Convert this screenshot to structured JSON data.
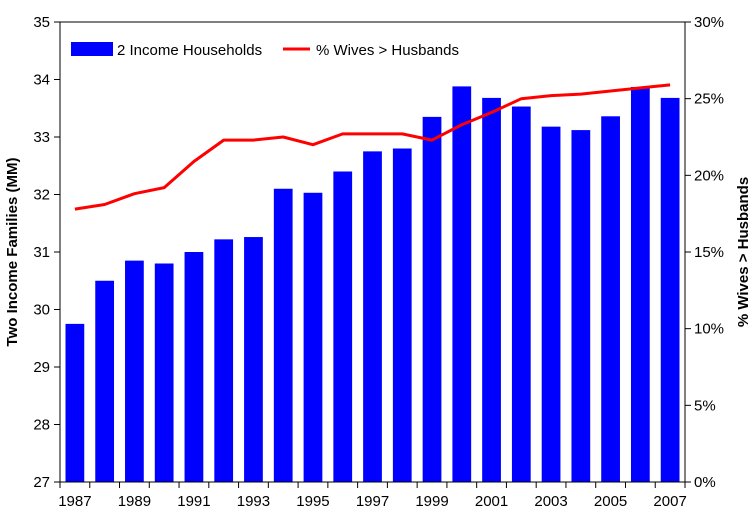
{
  "chart_data": {
    "type": "bar",
    "title": "",
    "ylabel": "Two Income Families (MM)",
    "y2label": "% Wives > Husbands",
    "ylim": [
      27,
      35
    ],
    "y2lim": [
      0,
      30
    ],
    "yticks": [
      "27",
      "28",
      "29",
      "30",
      "31",
      "32",
      "33",
      "34",
      "35"
    ],
    "y2ticks": [
      "0%",
      "5%",
      "10%",
      "15%",
      "20%",
      "25%",
      "30%"
    ],
    "categories": [
      "1987",
      "1988",
      "1989",
      "1990",
      "1991",
      "1992",
      "1993",
      "1994",
      "1995",
      "1996",
      "1997",
      "1998",
      "1999",
      "2000",
      "2001",
      "2002",
      "2003",
      "2004",
      "2005",
      "2006",
      "2007"
    ],
    "xtick_labels": [
      "1987",
      "",
      "1989",
      "",
      "1991",
      "",
      "1993",
      "",
      "1995",
      "",
      "1997",
      "",
      "1999",
      "",
      "2001",
      "",
      "2003",
      "",
      "2005",
      "",
      "2007"
    ],
    "legend_position": "top-left",
    "grid": false,
    "series": [
      {
        "name": "2 Income Households",
        "kind": "bar",
        "axis": "left",
        "color": "#0000ff",
        "values": [
          29.75,
          30.5,
          30.85,
          30.8,
          31.0,
          31.22,
          31.26,
          32.1,
          32.03,
          32.4,
          32.75,
          32.8,
          33.35,
          33.88,
          33.68,
          33.53,
          33.18,
          33.12,
          33.36,
          33.87,
          33.68
        ]
      },
      {
        "name": "% Wives > Husbands",
        "kind": "line",
        "axis": "right",
        "color": "#ff0000",
        "values": [
          17.8,
          18.1,
          18.8,
          19.2,
          20.9,
          22.3,
          22.3,
          22.5,
          22.0,
          22.7,
          22.7,
          22.7,
          22.3,
          23.3,
          24.1,
          25.0,
          25.2,
          25.3,
          25.5,
          25.7,
          25.9
        ]
      }
    ]
  }
}
